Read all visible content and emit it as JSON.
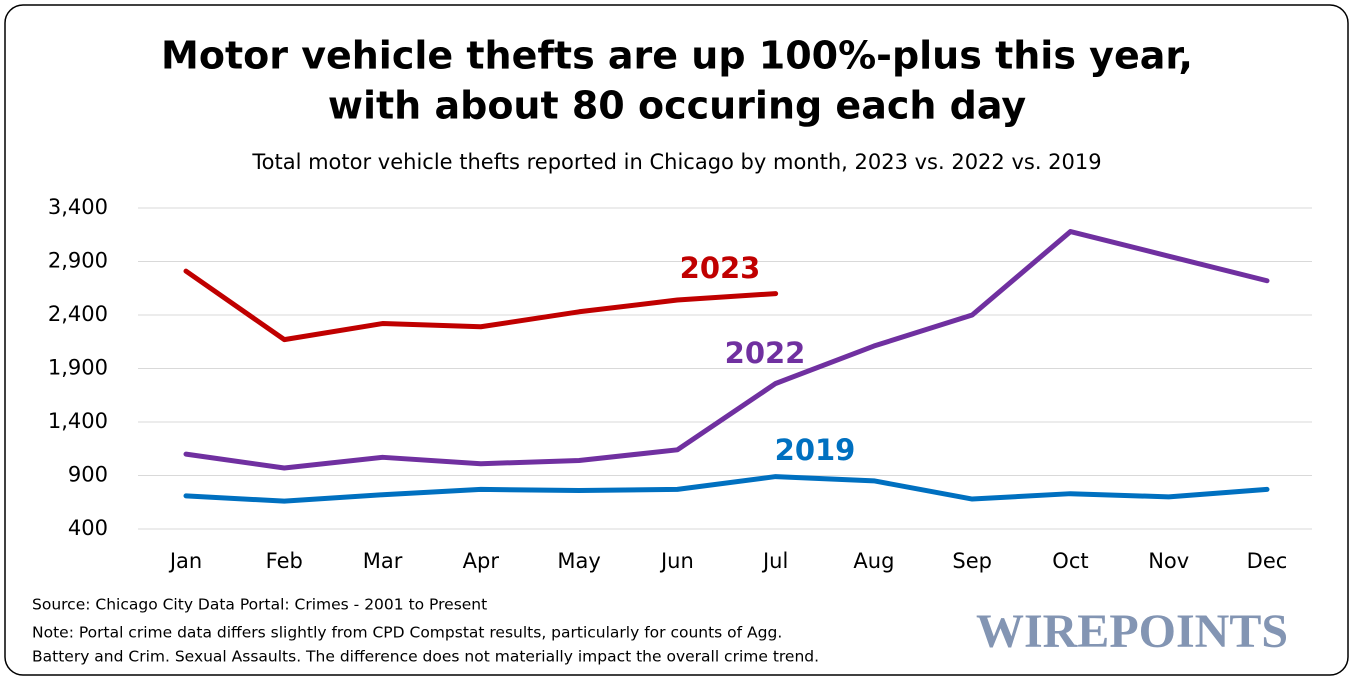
{
  "chart_data": {
    "type": "line",
    "title": [
      "Motor vehicle thefts are up 100%-plus this year,",
      "with about 80 occuring each day"
    ],
    "subtitle": "Total motor vehicle thefts reported in Chicago by month, 2023 vs. 2022 vs. 2019",
    "categories": [
      "Jan",
      "Feb",
      "Mar",
      "Apr",
      "May",
      "Jun",
      "Jul",
      "Aug",
      "Sep",
      "Oct",
      "Nov",
      "Dec"
    ],
    "series": [
      {
        "name": "2023",
        "color": "#c00000",
        "values": [
          2810,
          2170,
          2320,
          2290,
          2430,
          2540,
          2600,
          null,
          null,
          null,
          null,
          null
        ]
      },
      {
        "name": "2022",
        "color": "#7030a0",
        "values": [
          1100,
          970,
          1070,
          1010,
          1040,
          1140,
          1760,
          2110,
          2400,
          3180,
          2950,
          2720
        ]
      },
      {
        "name": "2019",
        "color": "#0070c0",
        "values": [
          710,
          660,
          720,
          770,
          760,
          770,
          890,
          850,
          680,
          730,
          700,
          770
        ]
      }
    ],
    "ylim": [
      400,
      3400
    ],
    "yticks": [
      400,
      900,
      {
        "value": 1400,
        "label": "1,400"
      },
      {
        "value": 1900,
        "label": "1,900"
      },
      {
        "value": 2400,
        "label": "2,400"
      },
      {
        "value": 2900,
        "label": "2,900"
      },
      {
        "value": 3400,
        "label": "3,400"
      }
    ],
    "grid": true,
    "source": "Source: Chicago City Data Portal: Crimes - 2001 to Present",
    "note": [
      "Note: Portal crime data differs slightly from CPD Compstat results, particularly for counts of Agg.",
      "Battery and Crim. Sexual Assaults. The difference does not materially impact the overall crime trend."
    ],
    "logo": "WIREPOINTS"
  }
}
